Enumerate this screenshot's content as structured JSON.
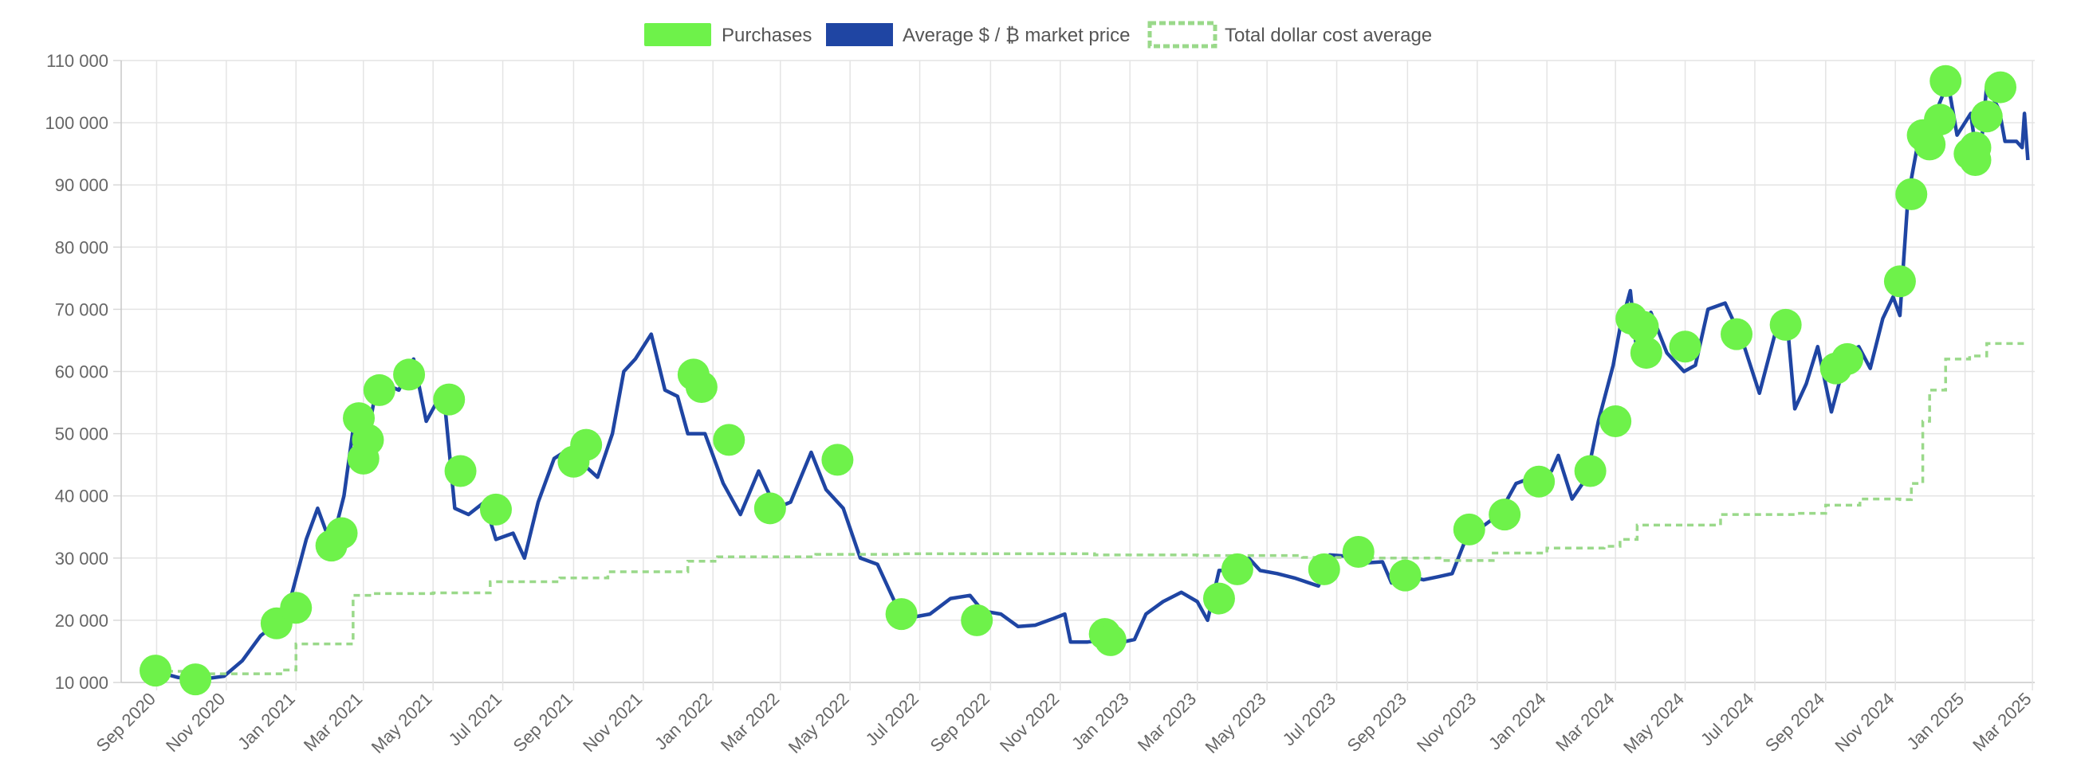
{
  "chart_data": {
    "type": "line",
    "legend": {
      "position": "top",
      "items": [
        {
          "key": "purchases",
          "label": "Purchases",
          "color": "#6ef24a"
        },
        {
          "key": "price",
          "label": "Average $ / ₿ market price",
          "color": "#1f45a3"
        },
        {
          "key": "dca",
          "label": "Total dollar cost average",
          "color": "#9ad98a"
        }
      ]
    },
    "y_axis": {
      "min": 10000,
      "max": 110000,
      "ticks": [
        10000,
        20000,
        30000,
        40000,
        50000,
        60000,
        70000,
        80000,
        90000,
        100000,
        110000
      ],
      "tick_labels": [
        "10 000",
        "20 000",
        "30 000",
        "40 000",
        "50 000",
        "60 000",
        "70 000",
        "80 000",
        "90 000",
        "100 000",
        "110 000"
      ]
    },
    "x_axis": {
      "min": "2020-08-01",
      "max": "2025-03-03",
      "ticks": [
        "2020-09-01",
        "2020-11-01",
        "2021-01-01",
        "2021-03-01",
        "2021-05-01",
        "2021-07-01",
        "2021-09-01",
        "2021-11-01",
        "2022-01-01",
        "2022-03-01",
        "2022-05-01",
        "2022-07-01",
        "2022-09-01",
        "2022-11-01",
        "2023-01-01",
        "2023-03-01",
        "2023-05-01",
        "2023-07-01",
        "2023-09-01",
        "2023-11-01",
        "2024-01-01",
        "2024-03-01",
        "2024-05-01",
        "2024-07-01",
        "2024-09-01",
        "2024-11-01",
        "2025-01-01",
        "2025-03-01"
      ],
      "tick_labels": [
        "Sep 2020",
        "Nov 2020",
        "Jan 2021",
        "Mar 2021",
        "May 2021",
        "Jul 2021",
        "Sep 2021",
        "Nov 2021",
        "Jan 2022",
        "Mar 2022",
        "May 2022",
        "Jul 2022",
        "Sep 2022",
        "Nov 2022",
        "Jan 2023",
        "Mar 2023",
        "May 2023",
        "Jul 2023",
        "Sep 2023",
        "Nov 2023",
        "Jan 2024",
        "Mar 2024",
        "May 2024",
        "Jul 2024",
        "Sep 2024",
        "Nov 2024",
        "Jan 2025",
        "Mar 2025"
      ]
    },
    "grid": true,
    "series": [
      {
        "key": "price",
        "name": "Average $ / ₿ market price",
        "type": "line",
        "color": "#1f45a3",
        "points": [
          [
            "2020-08-31",
            11800
          ],
          [
            "2020-09-20",
            10800
          ],
          [
            "2020-10-10",
            10500
          ],
          [
            "2020-10-30",
            11000
          ],
          [
            "2020-11-15",
            13500
          ],
          [
            "2020-12-01",
            17500
          ],
          [
            "2020-12-15",
            19500
          ],
          [
            "2020-12-28",
            24000
          ],
          [
            "2021-01-10",
            33000
          ],
          [
            "2021-01-20",
            38000
          ],
          [
            "2021-02-01",
            32000
          ],
          [
            "2021-02-12",
            40000
          ],
          [
            "2021-02-21",
            52000
          ],
          [
            "2021-03-01",
            46000
          ],
          [
            "2021-03-10",
            55000
          ],
          [
            "2021-03-20",
            58000
          ],
          [
            "2021-04-01",
            57000
          ],
          [
            "2021-04-14",
            62000
          ],
          [
            "2021-04-25",
            52000
          ],
          [
            "2021-05-10",
            57000
          ],
          [
            "2021-05-20",
            38000
          ],
          [
            "2021-06-01",
            37000
          ],
          [
            "2021-06-15",
            39000
          ],
          [
            "2021-06-25",
            33000
          ],
          [
            "2021-07-10",
            34000
          ],
          [
            "2021-07-20",
            30000
          ],
          [
            "2021-08-01",
            39000
          ],
          [
            "2021-08-15",
            46000
          ],
          [
            "2021-09-01",
            48000
          ],
          [
            "2021-09-10",
            45000
          ],
          [
            "2021-09-22",
            43000
          ],
          [
            "2021-10-05",
            50000
          ],
          [
            "2021-10-15",
            60000
          ],
          [
            "2021-10-25",
            62000
          ],
          [
            "2021-11-08",
            66000
          ],
          [
            "2021-11-20",
            57000
          ],
          [
            "2021-12-01",
            56000
          ],
          [
            "2021-12-10",
            50000
          ],
          [
            "2021-12-25",
            50000
          ],
          [
            "2022-01-10",
            42000
          ],
          [
            "2022-01-25",
            37000
          ],
          [
            "2022-02-10",
            44000
          ],
          [
            "2022-02-25",
            38000
          ],
          [
            "2022-03-10",
            39000
          ],
          [
            "2022-03-28",
            47000
          ],
          [
            "2022-04-10",
            41000
          ],
          [
            "2022-04-25",
            38000
          ],
          [
            "2022-05-10",
            30000
          ],
          [
            "2022-05-25",
            29000
          ],
          [
            "2022-06-14",
            21000
          ],
          [
            "2022-06-25",
            20500
          ],
          [
            "2022-07-10",
            21000
          ],
          [
            "2022-07-28",
            23500
          ],
          [
            "2022-08-14",
            24000
          ],
          [
            "2022-08-25",
            21500
          ],
          [
            "2022-09-10",
            21000
          ],
          [
            "2022-09-25",
            19000
          ],
          [
            "2022-10-10",
            19200
          ],
          [
            "2022-10-25",
            20200
          ],
          [
            "2022-11-05",
            21000
          ],
          [
            "2022-11-10",
            16500
          ],
          [
            "2022-11-25",
            16500
          ],
          [
            "2022-12-15",
            17000
          ],
          [
            "2022-12-28",
            16600
          ],
          [
            "2023-01-05",
            16900
          ],
          [
            "2023-01-15",
            21000
          ],
          [
            "2023-01-30",
            23000
          ],
          [
            "2023-02-15",
            24500
          ],
          [
            "2023-03-01",
            23000
          ],
          [
            "2023-03-10",
            20000
          ],
          [
            "2023-03-20",
            28000
          ],
          [
            "2023-04-05",
            28000
          ],
          [
            "2023-04-15",
            30000
          ],
          [
            "2023-04-25",
            28000
          ],
          [
            "2023-05-10",
            27500
          ],
          [
            "2023-05-25",
            26800
          ],
          [
            "2023-06-15",
            25500
          ],
          [
            "2023-06-25",
            30500
          ],
          [
            "2023-07-10",
            30300
          ],
          [
            "2023-07-25",
            29200
          ],
          [
            "2023-08-10",
            29400
          ],
          [
            "2023-08-18",
            26000
          ],
          [
            "2023-08-30",
            27200
          ],
          [
            "2023-09-15",
            26500
          ],
          [
            "2023-09-28",
            27000
          ],
          [
            "2023-10-10",
            27500
          ],
          [
            "2023-10-24",
            34000
          ],
          [
            "2023-11-05",
            35000
          ],
          [
            "2023-11-20",
            37000
          ],
          [
            "2023-12-05",
            42000
          ],
          [
            "2023-12-20",
            43000
          ],
          [
            "2024-01-05",
            44000
          ],
          [
            "2024-01-11",
            46500
          ],
          [
            "2024-01-23",
            39500
          ],
          [
            "2024-02-05",
            43000
          ],
          [
            "2024-02-15",
            52000
          ],
          [
            "2024-02-28",
            61000
          ],
          [
            "2024-03-05",
            67000
          ],
          [
            "2024-03-14",
            73000
          ],
          [
            "2024-03-20",
            62500
          ],
          [
            "2024-04-01",
            69500
          ],
          [
            "2024-04-15",
            63000
          ],
          [
            "2024-04-30",
            60000
          ],
          [
            "2024-05-10",
            61000
          ],
          [
            "2024-05-21",
            70000
          ],
          [
            "2024-06-05",
            71000
          ],
          [
            "2024-06-20",
            65000
          ],
          [
            "2024-07-05",
            56500
          ],
          [
            "2024-07-20",
            67000
          ],
          [
            "2024-07-29",
            68500
          ],
          [
            "2024-08-05",
            54000
          ],
          [
            "2024-08-15",
            58000
          ],
          [
            "2024-08-25",
            64000
          ],
          [
            "2024-09-06",
            53500
          ],
          [
            "2024-09-20",
            63000
          ],
          [
            "2024-09-30",
            64000
          ],
          [
            "2024-10-10",
            60500
          ],
          [
            "2024-10-21",
            68500
          ],
          [
            "2024-10-30",
            72000
          ],
          [
            "2024-11-05",
            69000
          ],
          [
            "2024-11-12",
            88000
          ],
          [
            "2024-11-22",
            98000
          ],
          [
            "2024-12-01",
            96500
          ],
          [
            "2024-12-05",
            101000
          ],
          [
            "2024-12-17",
            106500
          ],
          [
            "2024-12-25",
            98000
          ],
          [
            "2025-01-06",
            101500
          ],
          [
            "2025-01-13",
            92000
          ],
          [
            "2025-01-20",
            106000
          ],
          [
            "2025-01-31",
            102000
          ],
          [
            "2025-02-05",
            97000
          ],
          [
            "2025-02-15",
            97000
          ],
          [
            "2025-02-20",
            96000
          ],
          [
            "2025-02-22",
            101500
          ],
          [
            "2025-02-25",
            94000
          ]
        ]
      },
      {
        "key": "dca",
        "name": "Total dollar cost average",
        "type": "step",
        "color": "#9ad98a",
        "points": [
          [
            "2020-08-31",
            11800
          ],
          [
            "2020-10-05",
            11400
          ],
          [
            "2020-12-20",
            12000
          ],
          [
            "2021-01-01",
            16200
          ],
          [
            "2021-02-20",
            24000
          ],
          [
            "2021-03-10",
            24300
          ],
          [
            "2021-05-01",
            24400
          ],
          [
            "2021-06-20",
            26200
          ],
          [
            "2021-08-20",
            26800
          ],
          [
            "2021-10-01",
            27800
          ],
          [
            "2021-12-10",
            29500
          ],
          [
            "2022-01-05",
            30200
          ],
          [
            "2022-04-01",
            30600
          ],
          [
            "2022-06-15",
            30700
          ],
          [
            "2022-12-01",
            30500
          ],
          [
            "2023-03-01",
            30400
          ],
          [
            "2023-06-01",
            30100
          ],
          [
            "2023-08-01",
            30000
          ],
          [
            "2023-10-01",
            29600
          ],
          [
            "2023-11-15",
            30800
          ],
          [
            "2024-01-01",
            31600
          ],
          [
            "2024-02-20",
            31900
          ],
          [
            "2024-03-05",
            33000
          ],
          [
            "2024-03-20",
            35300
          ],
          [
            "2024-06-01",
            37000
          ],
          [
            "2024-08-05",
            37200
          ],
          [
            "2024-09-01",
            38500
          ],
          [
            "2024-10-01",
            39500
          ],
          [
            "2024-11-05",
            39400
          ],
          [
            "2024-11-15",
            42000
          ],
          [
            "2024-11-25",
            52000
          ],
          [
            "2024-12-01",
            57000
          ],
          [
            "2024-12-15",
            62000
          ],
          [
            "2025-01-05",
            62500
          ],
          [
            "2025-01-20",
            64500
          ],
          [
            "2025-02-25",
            64500
          ]
        ]
      }
    ],
    "purchases": [
      [
        "2020-08-31",
        11900
      ],
      [
        "2020-10-05",
        10500
      ],
      [
        "2020-12-15",
        19500
      ],
      [
        "2021-01-01",
        22000
      ],
      [
        "2021-02-01",
        32000
      ],
      [
        "2021-02-10",
        34000
      ],
      [
        "2021-02-25",
        52500
      ],
      [
        "2021-03-01",
        46000
      ],
      [
        "2021-03-05",
        49000
      ],
      [
        "2021-03-15",
        57000
      ],
      [
        "2021-04-10",
        59500
      ],
      [
        "2021-05-15",
        55500
      ],
      [
        "2021-05-25",
        44000
      ],
      [
        "2021-06-25",
        37800
      ],
      [
        "2021-09-01",
        45500
      ],
      [
        "2021-09-12",
        48200
      ],
      [
        "2021-12-15",
        59500
      ],
      [
        "2021-12-22",
        57500
      ],
      [
        "2022-01-15",
        49000
      ],
      [
        "2022-02-20",
        38000
      ],
      [
        "2022-04-20",
        45800
      ],
      [
        "2022-06-15",
        21000
      ],
      [
        "2022-08-20",
        20000
      ],
      [
        "2022-12-10",
        17800
      ],
      [
        "2022-12-15",
        16800
      ],
      [
        "2023-03-20",
        23500
      ],
      [
        "2023-04-05",
        28200
      ],
      [
        "2023-06-20",
        28200
      ],
      [
        "2023-07-20",
        31000
      ],
      [
        "2023-08-30",
        27200
      ],
      [
        "2023-10-25",
        34600
      ],
      [
        "2023-11-25",
        37000
      ],
      [
        "2023-12-25",
        42300
      ],
      [
        "2024-02-08",
        44000
      ],
      [
        "2024-03-01",
        52000
      ],
      [
        "2024-03-15",
        68500
      ],
      [
        "2024-03-25",
        67200
      ],
      [
        "2024-03-28",
        63000
      ],
      [
        "2024-05-01",
        64000
      ],
      [
        "2024-06-15",
        66000
      ],
      [
        "2024-07-28",
        67500
      ],
      [
        "2024-09-10",
        60500
      ],
      [
        "2024-09-20",
        62000
      ],
      [
        "2024-11-05",
        74500
      ],
      [
        "2024-11-15",
        88500
      ],
      [
        "2024-11-25",
        98000
      ],
      [
        "2024-12-01",
        96500
      ],
      [
        "2024-12-10",
        100500
      ],
      [
        "2024-12-15",
        106700
      ],
      [
        "2025-01-05",
        95000
      ],
      [
        "2025-01-10",
        96000
      ],
      [
        "2025-01-20",
        101000
      ],
      [
        "2025-02-01",
        105700
      ],
      [
        "2025-01-10",
        94000
      ]
    ]
  }
}
